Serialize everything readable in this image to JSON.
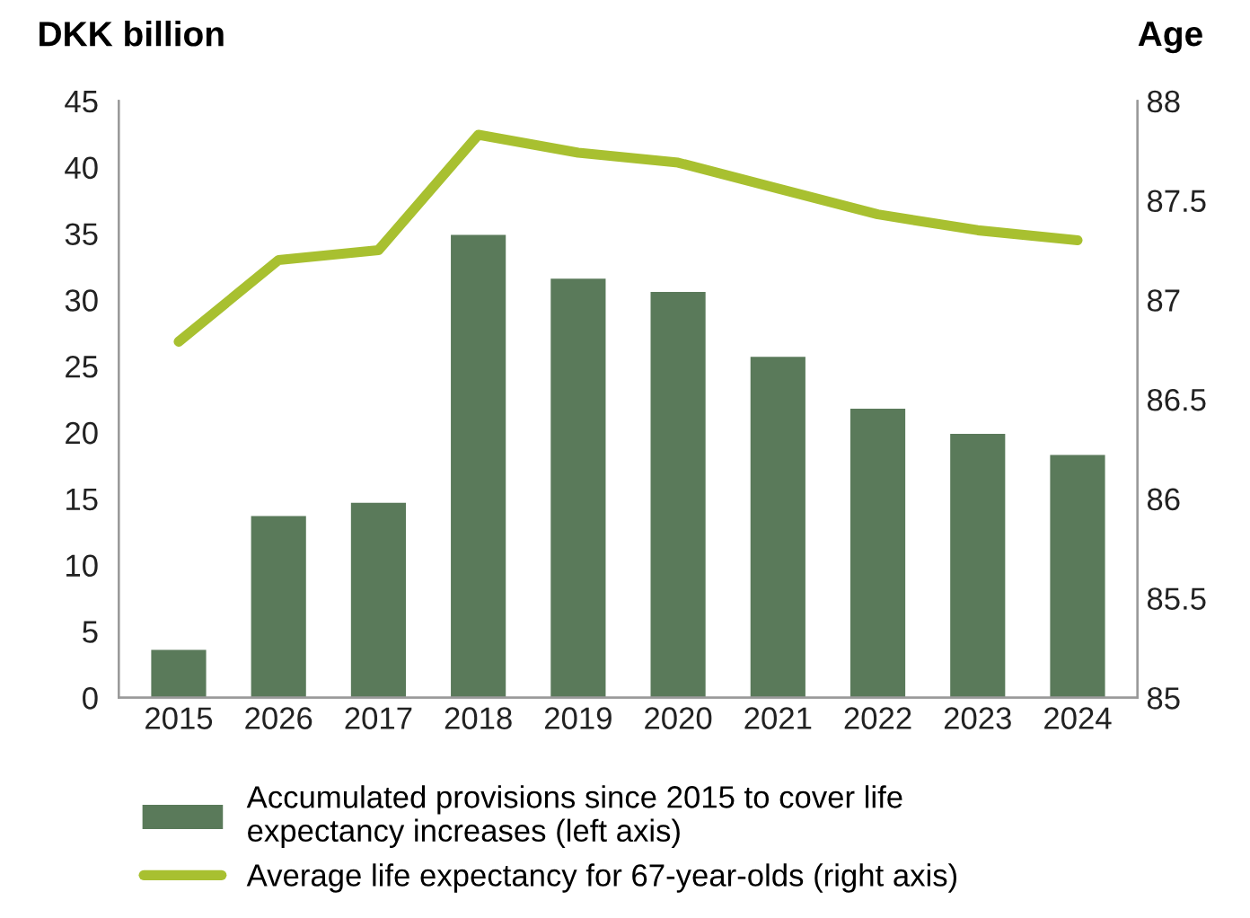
{
  "chart_data": {
    "type": "bar",
    "ylabel": "DKK billion",
    "y2label": "Age",
    "categories": [
      "2015",
      "2026",
      "2017",
      "2018",
      "2019",
      "2020",
      "2021",
      "2022",
      "2023",
      "2024"
    ],
    "series": [
      {
        "name": "Accumulated provisions since 2015 to cover life expectancy increases (left axis)",
        "color": "#5a7a5a",
        "values": [
          3.6,
          13.7,
          14.7,
          34.9,
          31.6,
          30.6,
          25.7,
          21.8,
          19.9,
          18.3
        ]
      },
      {
        "name": "Average life expectancy for 67-year-olds (right axis)",
        "type": "line",
        "axis": "y2",
        "color": "#a8c030",
        "values": [
          86.79,
          87.2,
          87.25,
          87.83,
          87.74,
          87.69,
          87.56,
          87.43,
          87.35,
          87.3
        ]
      }
    ],
    "ylim": [
      0,
      45
    ],
    "yticks": [
      0,
      5,
      10,
      15,
      20,
      25,
      30,
      35,
      40,
      45
    ],
    "y2lim": [
      85,
      88
    ],
    "y2ticks": [
      85,
      {
        "value": 85.5,
        "label": "85.5"
      },
      86,
      {
        "value": 86.5,
        "label": "86.5"
      },
      87,
      {
        "value": 87.5,
        "label": "87.5"
      },
      88
    ],
    "grid": false,
    "legend": "bottom"
  }
}
